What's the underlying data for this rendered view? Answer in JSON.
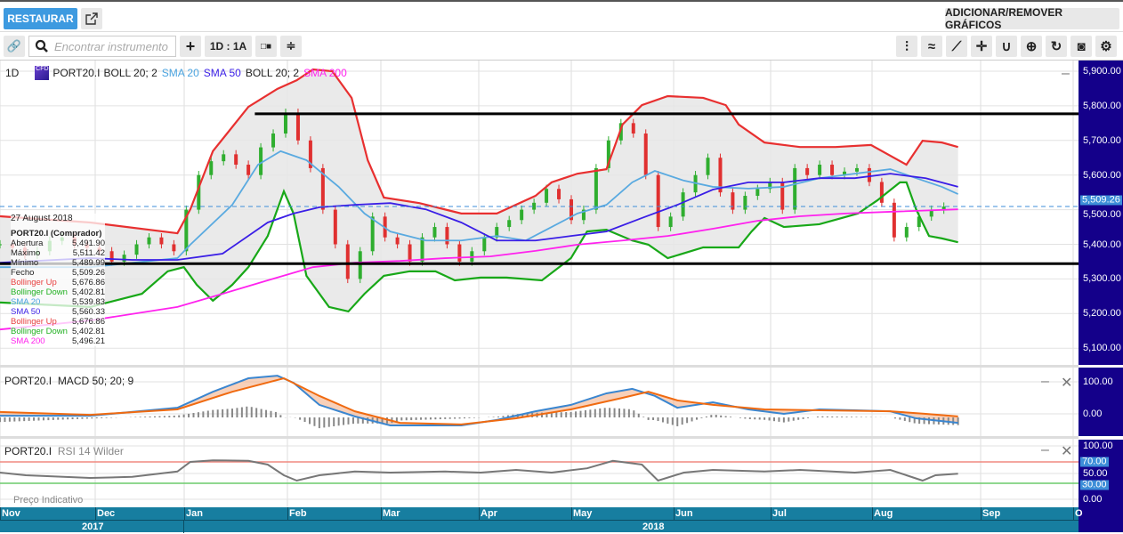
{
  "header": {
    "restore_label": "RESTAURAR",
    "add_remove_label": "ADICIONAR/REMOVER GRÁFICOS",
    "popout_icon": "external-link-icon"
  },
  "toolbar": {
    "search_placeholder": "Encontrar instrumento",
    "interval_label": "1D : 1A",
    "tools": [
      "candlestick-icon",
      "indicators-icon",
      "line-draw-icon",
      "crosshair-icon",
      "curve-icon",
      "zoom-in-icon",
      "refresh-icon",
      "camera-icon",
      "gear-icon"
    ]
  },
  "legend": {
    "interval": "1D",
    "badge": "CFD",
    "symbol": "PORT20.I",
    "items": [
      {
        "label": "BOLL 20; 2",
        "color": "#222222"
      },
      {
        "label": "SMA 20",
        "color": "#4aa3df"
      },
      {
        "label": "SMA 50",
        "color": "#3a1ee6"
      },
      {
        "label": "BOLL 20; 2",
        "color": "#222222"
      },
      {
        "label": "SMA 200",
        "color": "#ff22ee"
      }
    ]
  },
  "tooltip": {
    "date": "27 August 2018",
    "title": "PORT20.I (Comprador)",
    "rows": [
      {
        "label": "Abertura",
        "value": "5,491.90",
        "color": "#222222"
      },
      {
        "label": "Máximo",
        "value": "5,511.42",
        "color": "#222222"
      },
      {
        "label": "Mínimo",
        "value": "5,489.99",
        "color": "#222222"
      },
      {
        "label": "Fecho",
        "value": "5,509.26",
        "color": "#222222"
      },
      {
        "label": "Bollinger Up",
        "value": "5,676.86",
        "color": "#e84040"
      },
      {
        "label": "Bollinger Down",
        "value": "5,402.81",
        "color": "#20b020"
      },
      {
        "label": "SMA 20",
        "value": "5,539.83",
        "color": "#4aa3df"
      },
      {
        "label": "SMA 50",
        "value": "5,560.33",
        "color": "#3a1ee6"
      },
      {
        "label": "Bollinger Up",
        "value": "5,676.86",
        "color": "#e84040"
      },
      {
        "label": "Bollinger Down",
        "value": "5,402.81",
        "color": "#20b020"
      },
      {
        "label": "SMA 200",
        "value": "5,496.21",
        "color": "#ff22ee"
      }
    ]
  },
  "macd_panel": {
    "symbol": "PORT20.I",
    "label": "MACD 50; 20; 9",
    "ticks": [
      "100.00",
      "0.00"
    ]
  },
  "rsi_panel": {
    "symbol": "PORT20.I",
    "label": "RSI 14 Wilder",
    "ticks": [
      "100.00",
      "70.00",
      "50.00",
      "30.00",
      "0.00"
    ],
    "footer": "Preço Indicativo"
  },
  "price_axis": {
    "ticks": [
      "5,900.00",
      "5,800.00",
      "5,700.00",
      "5,600.00",
      "5,500.00",
      "5,400.00",
      "5,300.00",
      "5,200.00",
      "5,100.00"
    ],
    "current": "5,509.26"
  },
  "time_axis": {
    "months": [
      "Nov",
      "Dec",
      "Jan",
      "Feb",
      "Mar",
      "Apr",
      "May",
      "Jun",
      "Jul",
      "Aug",
      "Sep",
      "O"
    ],
    "years": [
      "2017",
      "2018"
    ]
  },
  "chart_data": {
    "type": "line",
    "x_unit": "days since 2017-11-01",
    "ylim": [
      5060,
      5920
    ],
    "current_price": 5509.26,
    "horizontal_lines": [
      {
        "value": 5777,
        "from_day": 79
      },
      {
        "value": 5344,
        "from_day": 0
      }
    ],
    "close": {
      "start_day": 0,
      "day_step": 3.85,
      "values": [
        5400,
        5390,
        5370,
        5380,
        5410,
        5420,
        5400,
        5390,
        5380,
        5350,
        5370,
        5400,
        5420,
        5400,
        5380,
        5500,
        5600,
        5640,
        5660,
        5630,
        5600,
        5680,
        5720,
        5780,
        5700,
        5620,
        5500,
        5400,
        5300,
        5380,
        5480,
        5420,
        5400,
        5350,
        5420,
        5450,
        5400,
        5350,
        5380,
        5420,
        5450,
        5470,
        5500,
        5520,
        5560,
        5530,
        5470,
        5500,
        5620,
        5700,
        5750,
        5720,
        5600,
        5450,
        5480,
        5550,
        5600,
        5650,
        5550,
        5500,
        5540,
        5560,
        5580,
        5500,
        5620,
        5600,
        5630,
        5600,
        5610,
        5620,
        5580,
        5520,
        5420,
        5450,
        5480,
        5500,
        5509
      ]
    },
    "series": [
      {
        "name": "Bollinger Up",
        "color": "#e83030",
        "points": [
          [
            0,
            5481
          ],
          [
            28,
            5463
          ],
          [
            55,
            5432
          ],
          [
            59,
            5501
          ],
          [
            66,
            5669
          ],
          [
            77,
            5797
          ],
          [
            86,
            5849
          ],
          [
            92,
            5874
          ],
          [
            97,
            5905
          ],
          [
            103,
            5900
          ],
          [
            109,
            5823
          ],
          [
            114,
            5643
          ],
          [
            119,
            5535
          ],
          [
            130,
            5519
          ],
          [
            143,
            5489
          ],
          [
            154,
            5489
          ],
          [
            166,
            5540
          ],
          [
            171,
            5579
          ],
          [
            179,
            5604
          ],
          [
            188,
            5617
          ],
          [
            193,
            5746
          ],
          [
            199,
            5802
          ],
          [
            207,
            5828
          ],
          [
            218,
            5823
          ],
          [
            225,
            5802
          ],
          [
            229,
            5746
          ],
          [
            237,
            5694
          ],
          [
            248,
            5681
          ],
          [
            259,
            5681
          ],
          [
            270,
            5687
          ],
          [
            281,
            5630
          ],
          [
            286,
            5699
          ],
          [
            292,
            5694
          ],
          [
            297,
            5681
          ]
        ]
      },
      {
        "name": "Bollinger Down",
        "color": "#18a818",
        "points": [
          [
            0,
            5232
          ],
          [
            28,
            5219
          ],
          [
            44,
            5257
          ],
          [
            52,
            5322
          ],
          [
            57,
            5334
          ],
          [
            61,
            5283
          ],
          [
            66,
            5237
          ],
          [
            72,
            5283
          ],
          [
            77,
            5334
          ],
          [
            83,
            5424
          ],
          [
            88,
            5553
          ],
          [
            91,
            5489
          ],
          [
            95,
            5309
          ],
          [
            102,
            5219
          ],
          [
            108,
            5206
          ],
          [
            113,
            5257
          ],
          [
            119,
            5309
          ],
          [
            127,
            5322
          ],
          [
            135,
            5322
          ],
          [
            141,
            5296
          ],
          [
            149,
            5304
          ],
          [
            157,
            5304
          ],
          [
            168,
            5296
          ],
          [
            177,
            5360
          ],
          [
            182,
            5437
          ],
          [
            188,
            5442
          ],
          [
            196,
            5411
          ],
          [
            201,
            5399
          ],
          [
            207,
            5360
          ],
          [
            218,
            5391
          ],
          [
            229,
            5391
          ],
          [
            233,
            5437
          ],
          [
            237,
            5476
          ],
          [
            243,
            5450
          ],
          [
            254,
            5458
          ],
          [
            261,
            5476
          ],
          [
            266,
            5489
          ],
          [
            272,
            5527
          ],
          [
            279,
            5579
          ],
          [
            281,
            5579
          ],
          [
            284,
            5501
          ],
          [
            288,
            5424
          ],
          [
            292,
            5417
          ],
          [
            297,
            5406
          ]
        ]
      },
      {
        "name": "SMA 20",
        "color": "#5aaae0",
        "points": [
          [
            0,
            5334
          ],
          [
            28,
            5334
          ],
          [
            55,
            5360
          ],
          [
            59,
            5399
          ],
          [
            72,
            5514
          ],
          [
            80,
            5630
          ],
          [
            87,
            5669
          ],
          [
            95,
            5643
          ],
          [
            105,
            5566
          ],
          [
            113,
            5489
          ],
          [
            121,
            5437
          ],
          [
            132,
            5411
          ],
          [
            143,
            5411
          ],
          [
            154,
            5424
          ],
          [
            163,
            5411
          ],
          [
            171,
            5450
          ],
          [
            179,
            5489
          ],
          [
            188,
            5514
          ],
          [
            196,
            5579
          ],
          [
            203,
            5612
          ],
          [
            212,
            5584
          ],
          [
            221,
            5566
          ],
          [
            232,
            5561
          ],
          [
            243,
            5566
          ],
          [
            254,
            5591
          ],
          [
            265,
            5604
          ],
          [
            276,
            5617
          ],
          [
            284,
            5591
          ],
          [
            292,
            5566
          ],
          [
            297,
            5545
          ]
        ]
      },
      {
        "name": "SMA 50",
        "color": "#3a1ee6",
        "points": [
          [
            0,
            5347
          ],
          [
            28,
            5360
          ],
          [
            41,
            5355
          ],
          [
            55,
            5355
          ],
          [
            69,
            5373
          ],
          [
            83,
            5463
          ],
          [
            91,
            5489
          ],
          [
            99,
            5507
          ],
          [
            110,
            5514
          ],
          [
            121,
            5519
          ],
          [
            132,
            5501
          ],
          [
            143,
            5463
          ],
          [
            154,
            5411
          ],
          [
            166,
            5411
          ],
          [
            177,
            5424
          ],
          [
            188,
            5437
          ],
          [
            199,
            5476
          ],
          [
            210,
            5514
          ],
          [
            221,
            5558
          ],
          [
            232,
            5579
          ],
          [
            243,
            5579
          ],
          [
            254,
            5591
          ],
          [
            265,
            5591
          ],
          [
            276,
            5604
          ],
          [
            287,
            5591
          ],
          [
            297,
            5566
          ]
        ]
      },
      {
        "name": "SMA 200",
        "color": "#ff22ee",
        "points": [
          [
            0,
            5154
          ],
          [
            28,
            5180
          ],
          [
            55,
            5219
          ],
          [
            69,
            5257
          ],
          [
            83,
            5296
          ],
          [
            97,
            5334
          ],
          [
            110,
            5347
          ],
          [
            124,
            5352
          ],
          [
            138,
            5360
          ],
          [
            152,
            5365
          ],
          [
            166,
            5381
          ],
          [
            179,
            5399
          ],
          [
            193,
            5411
          ],
          [
            207,
            5424
          ],
          [
            221,
            5445
          ],
          [
            235,
            5468
          ],
          [
            248,
            5481
          ],
          [
            262,
            5489
          ],
          [
            276,
            5494
          ],
          [
            297,
            5501
          ]
        ]
      }
    ],
    "macd": {
      "ylim": [
        -45,
        130
      ],
      "series": [
        {
          "name": "MACD",
          "color": "#3a86d0",
          "points": [
            [
              0,
              -6
            ],
            [
              28,
              -6
            ],
            [
              55,
              19
            ],
            [
              66,
              69
            ],
            [
              77,
              111
            ],
            [
              86,
              119
            ],
            [
              91,
              97
            ],
            [
              99,
              28
            ],
            [
              110,
              -8
            ],
            [
              121,
              -36
            ],
            [
              132,
              -36
            ],
            [
              143,
              -36
            ],
            [
              154,
              -19
            ],
            [
              166,
              8
            ],
            [
              177,
              28
            ],
            [
              188,
              64
            ],
            [
              196,
              78
            ],
            [
              203,
              56
            ],
            [
              210,
              19
            ],
            [
              221,
              36
            ],
            [
              232,
              14
            ],
            [
              243,
              0
            ],
            [
              254,
              14
            ],
            [
              265,
              11
            ],
            [
              276,
              8
            ],
            [
              284,
              -14
            ],
            [
              297,
              -28
            ]
          ]
        },
        {
          "name": "Signal",
          "color": "#f06a10",
          "points": [
            [
              0,
              6
            ],
            [
              28,
              -3
            ],
            [
              55,
              14
            ],
            [
              72,
              69
            ],
            [
              88,
              111
            ],
            [
              99,
              56
            ],
            [
              110,
              8
            ],
            [
              124,
              -28
            ],
            [
              143,
              -33
            ],
            [
              160,
              -14
            ],
            [
              177,
              14
            ],
            [
              193,
              50
            ],
            [
              201,
              69
            ],
            [
              210,
              42
            ],
            [
              221,
              28
            ],
            [
              237,
              14
            ],
            [
              254,
              11
            ],
            [
              276,
              8
            ],
            [
              287,
              0
            ],
            [
              297,
              -8
            ]
          ]
        }
      ]
    },
    "rsi": {
      "ylim": [
        0,
        100
      ],
      "levels": [
        70,
        30
      ],
      "points": [
        [
          0,
          50
        ],
        [
          8,
          45
        ],
        [
          28,
          40
        ],
        [
          41,
          42
        ],
        [
          55,
          52
        ],
        [
          59,
          70
        ],
        [
          66,
          73
        ],
        [
          77,
          72
        ],
        [
          83,
          65
        ],
        [
          88,
          45
        ],
        [
          92,
          35
        ],
        [
          99,
          45
        ],
        [
          110,
          52
        ],
        [
          121,
          50
        ],
        [
          138,
          52
        ],
        [
          149,
          50
        ],
        [
          160,
          55
        ],
        [
          171,
          50
        ],
        [
          182,
          58
        ],
        [
          190,
          72
        ],
        [
          199,
          65
        ],
        [
          204,
          35
        ],
        [
          212,
          50
        ],
        [
          221,
          55
        ],
        [
          237,
          52
        ],
        [
          248,
          55
        ],
        [
          265,
          50
        ],
        [
          276,
          55
        ],
        [
          281,
          45
        ],
        [
          286,
          35
        ],
        [
          290,
          45
        ],
        [
          297,
          48
        ]
      ]
    }
  }
}
